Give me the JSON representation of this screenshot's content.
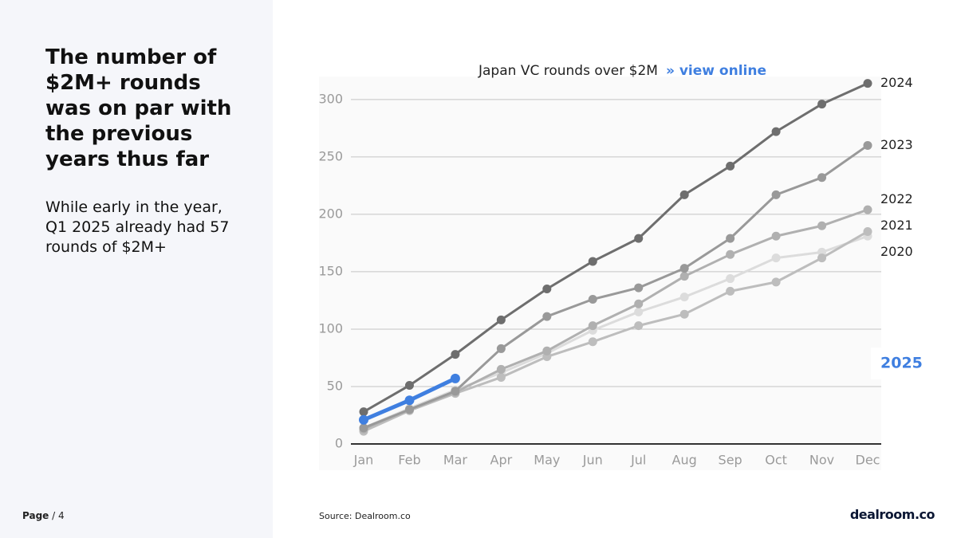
{
  "heading": "The number of $2M+ rounds was on par with the previous years thus far",
  "body": "While early in the year, Q1 2025 already had 57 rounds of $2M+",
  "page_label": "Page",
  "page_number": "/ 4",
  "source": "Source:  Dealroom.co",
  "logo": "dealroom.co",
  "chart_data": {
    "type": "line",
    "title": "Japan VC rounds over $2M",
    "link": "» view online",
    "categories": [
      "Jan",
      "Feb",
      "Mar",
      "Apr",
      "May",
      "Jun",
      "Jul",
      "Aug",
      "Sep",
      "Oct",
      "Nov",
      "Dec"
    ],
    "ylim": [
      0,
      320
    ],
    "yticks": [
      0,
      50,
      100,
      150,
      200,
      250,
      300
    ],
    "grid": true,
    "series": [
      {
        "name": "2020",
        "color": "#dcdcdc",
        "values": [
          14,
          31,
          47,
          62,
          79,
          99,
          115,
          128,
          144,
          162,
          167,
          181
        ]
      },
      {
        "name": "2021",
        "color": "#bdbdbd",
        "values": [
          11,
          29,
          44,
          58,
          76,
          89,
          103,
          113,
          133,
          141,
          162,
          185
        ]
      },
      {
        "name": "2022",
        "color": "#b0b0b0",
        "values": [
          13,
          30,
          45,
          65,
          81,
          103,
          122,
          146,
          165,
          181,
          190,
          204
        ]
      },
      {
        "name": "2023",
        "color": "#999999",
        "values": [
          14,
          30,
          46,
          83,
          111,
          126,
          136,
          153,
          179,
          217,
          232,
          260
        ]
      },
      {
        "name": "2024",
        "color": "#6e6e6e",
        "values": [
          28,
          51,
          78,
          108,
          135,
          159,
          179,
          217,
          242,
          272,
          296,
          314
        ]
      },
      {
        "name": "2025",
        "color": "#3f7fe0",
        "values": [
          21,
          38,
          57,
          null,
          null,
          null,
          null,
          null,
          null,
          null,
          null,
          null
        ]
      }
    ]
  }
}
